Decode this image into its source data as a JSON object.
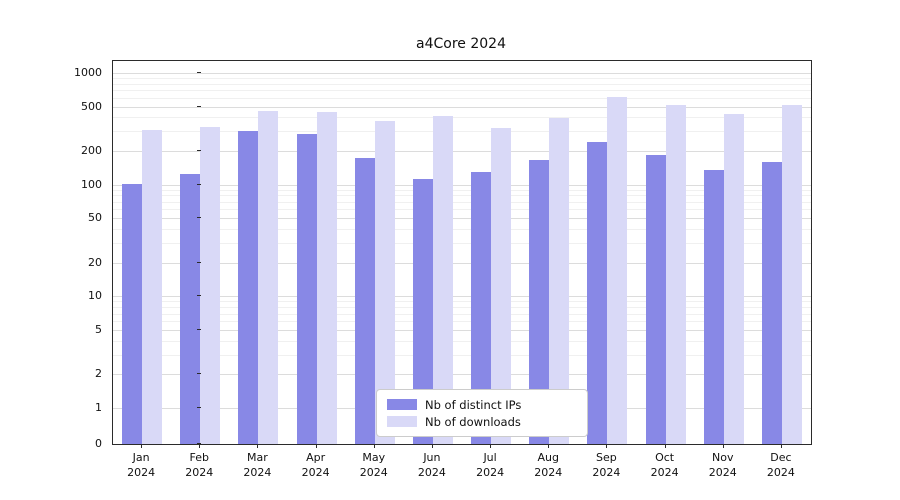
{
  "chart_data": {
    "type": "bar",
    "title": "a4Core 2024",
    "categories": [
      "Jan",
      "Feb",
      "Mar",
      "Apr",
      "May",
      "Jun",
      "Jul",
      "Aug",
      "Sep",
      "Oct",
      "Nov",
      "Dec"
    ],
    "category_year": "2024",
    "series": [
      {
        "name": "Nb of distinct IPs",
        "color": "#8888e6",
        "values": [
          102,
          125,
          300,
          285,
          175,
          112,
          130,
          165,
          240,
          185,
          135,
          160
        ]
      },
      {
        "name": "Nb of downloads",
        "color": "#d9d9f7",
        "values": [
          310,
          330,
          460,
          445,
          370,
          415,
          320,
          395,
          610,
          520,
          430,
          520
        ]
      }
    ],
    "yticks": [
      0,
      1,
      2,
      5,
      10,
      20,
      50,
      100,
      200,
      500,
      1000
    ],
    "yaxis_scale": "symlog",
    "ylim": [
      0,
      1200
    ],
    "grid": true,
    "legend_position": "lower center"
  }
}
